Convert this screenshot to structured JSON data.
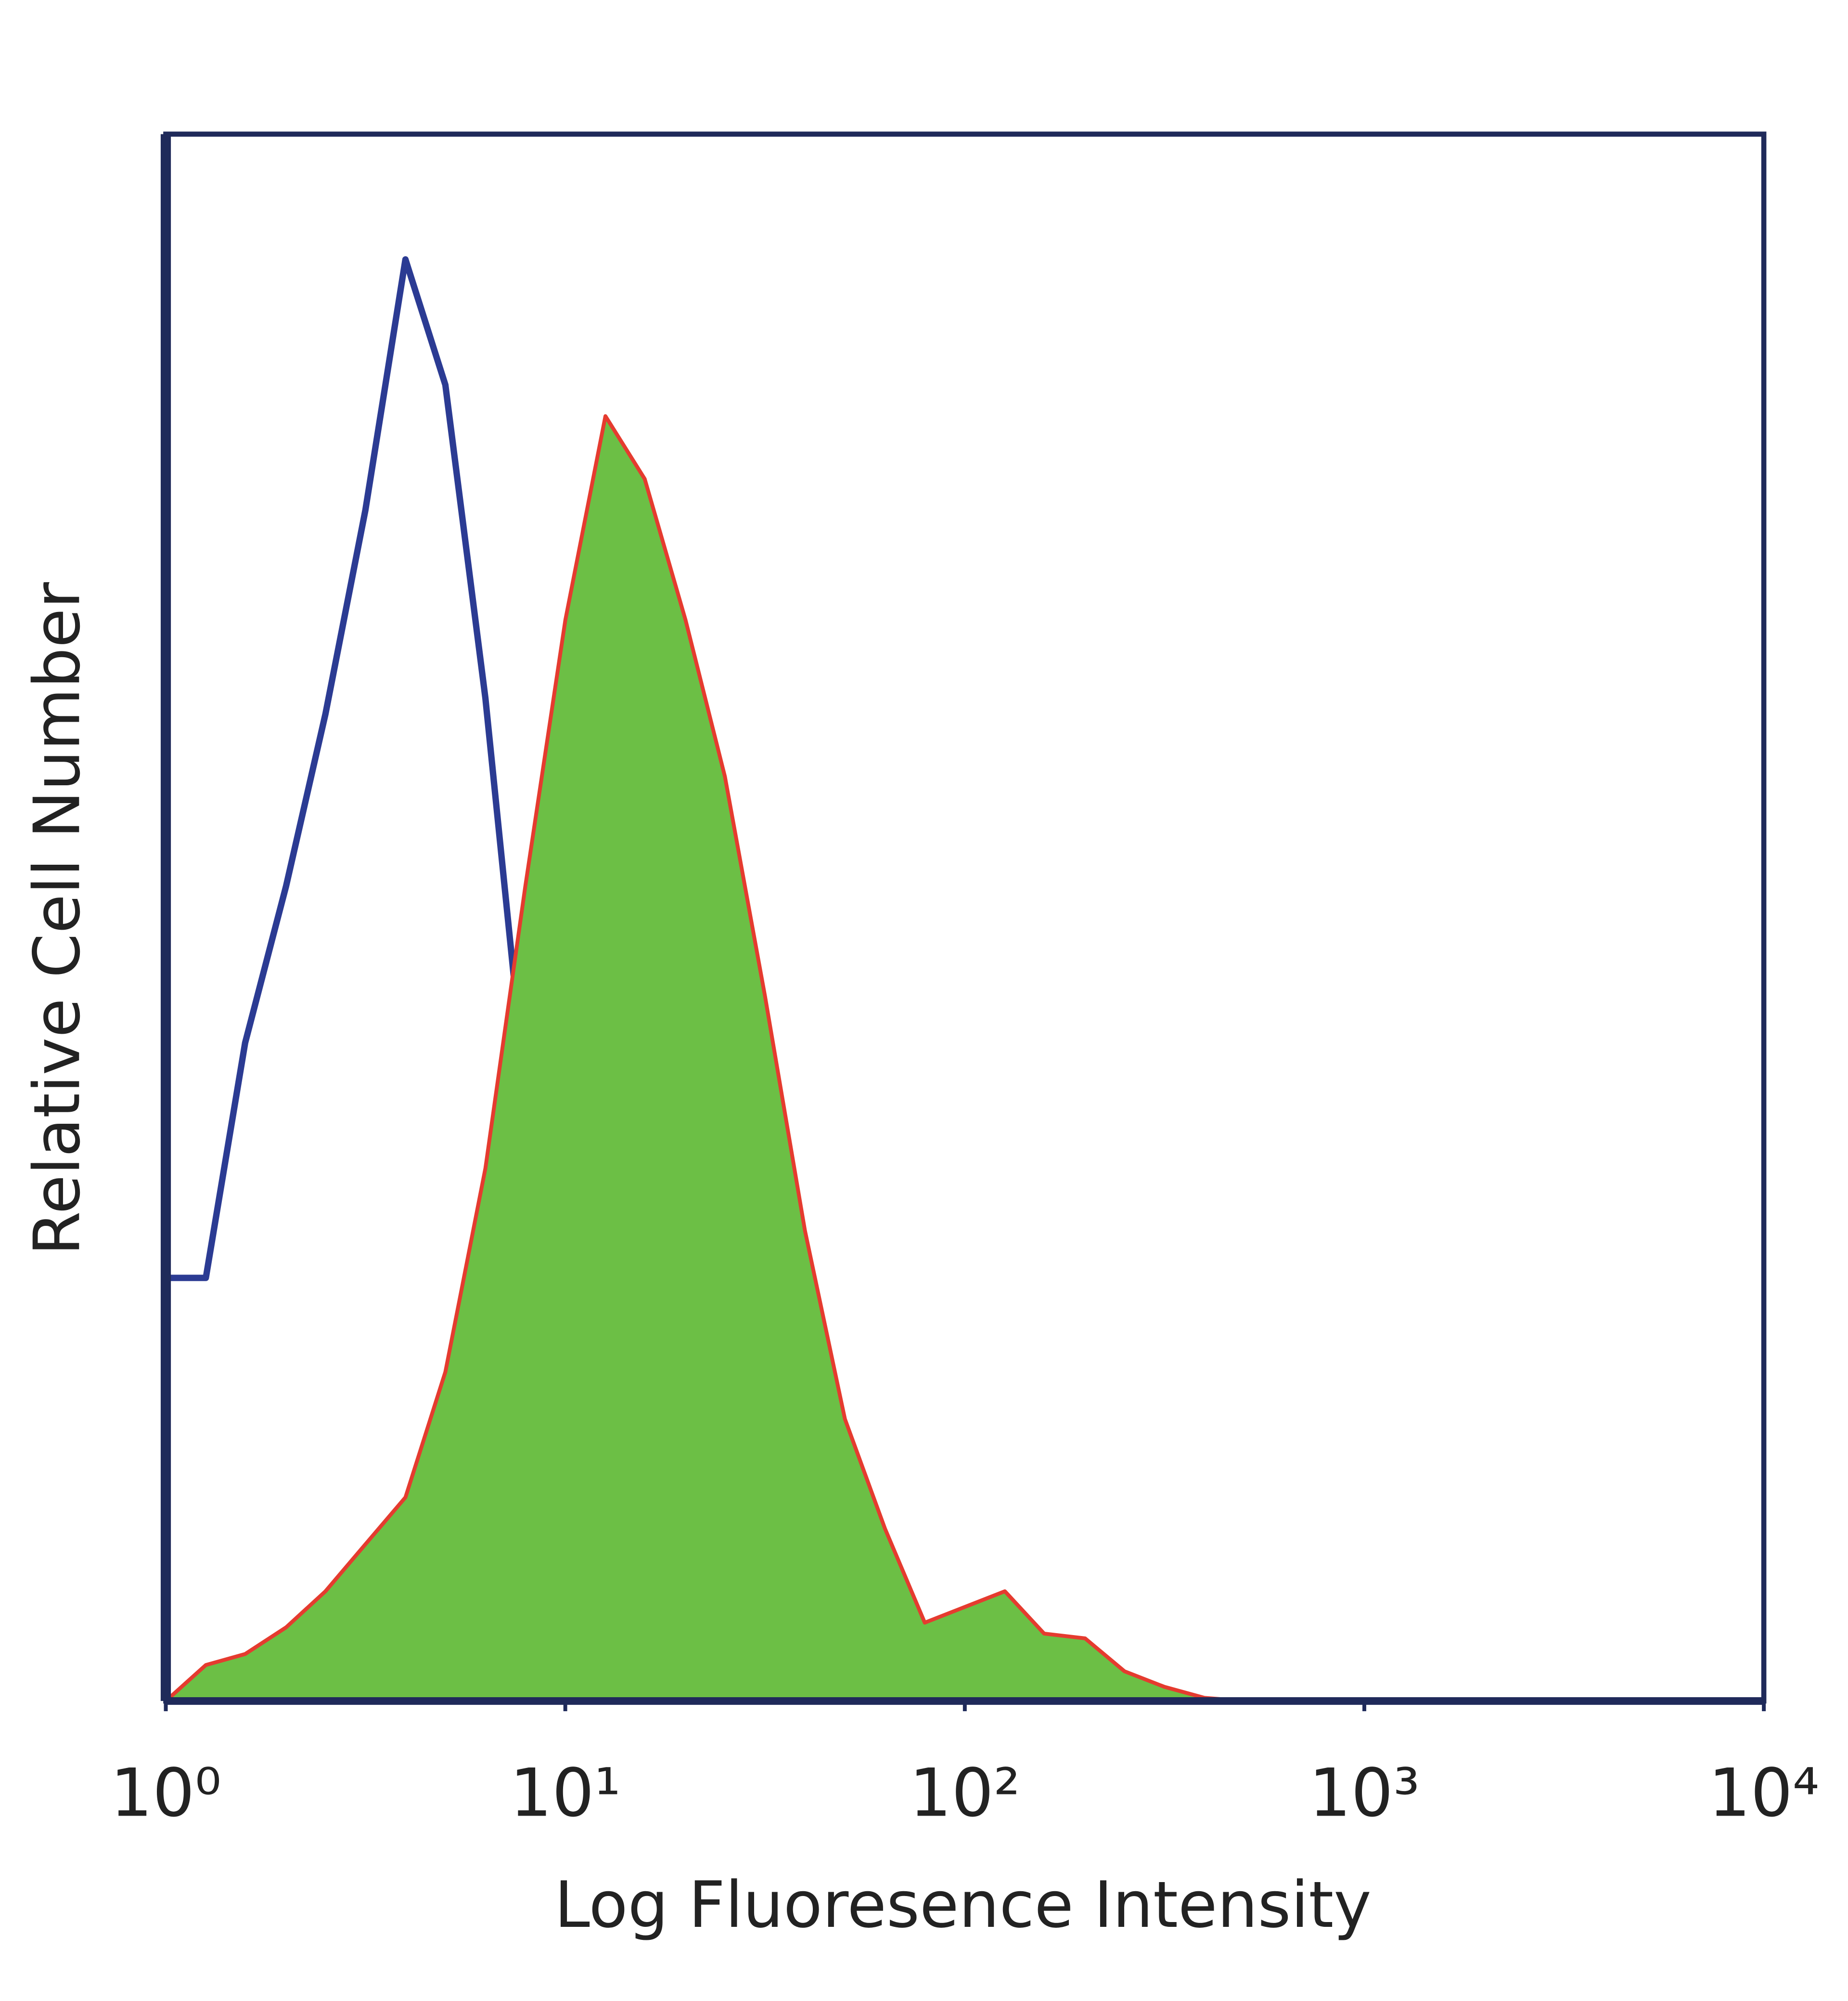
{
  "chart_data": {
    "type": "histogram-overlay",
    "x_label": "Log Fluoresence Intensity",
    "y_label": "Relative Cell Number",
    "xscale": "log",
    "xlim": [
      1,
      10000
    ],
    "xticks": [
      {
        "value": 1,
        "label": "10⁰"
      },
      {
        "value": 10,
        "label": "10¹"
      },
      {
        "value": 100,
        "label": "10²"
      },
      {
        "value": 1000,
        "label": "10³"
      },
      {
        "value": 10000,
        "label": "10⁴"
      }
    ],
    "ylim": [
      0,
      100
    ],
    "axis_color": "#1f2a5a",
    "x": [
      1,
      1.26,
      1.58,
      2,
      2.51,
      3.16,
      3.98,
      5.01,
      6.31,
      7.94,
      10,
      12.6,
      15.8,
      20,
      25.1,
      31.6,
      39.8,
      50.1,
      63.1,
      79.4,
      100,
      126,
      158,
      200,
      251,
      316,
      398,
      501,
      631,
      794,
      1000
    ],
    "series": [
      {
        "color": "#2b3b93",
        "filled": false,
        "values": [
          27,
          27,
          42,
          52,
          63,
          76,
          92,
          84,
          64,
          39,
          17,
          5,
          3.5,
          2.3,
          2.7,
          1,
          0.7,
          0.4,
          0.6,
          0,
          0,
          0,
          0,
          0,
          0,
          0,
          0,
          0,
          0,
          0,
          0
        ]
      },
      {
        "color": "#e53b2f",
        "fill_color": "#6cbf45",
        "filled": true,
        "values": [
          0,
          2.3,
          3,
          4.7,
          7,
          10,
          13,
          21,
          34,
          52,
          69,
          82,
          78,
          69,
          59,
          45,
          30,
          18,
          11,
          5,
          6,
          7,
          4.3,
          4,
          1.9,
          0.9,
          0.2,
          0,
          0,
          0,
          0
        ]
      }
    ]
  }
}
